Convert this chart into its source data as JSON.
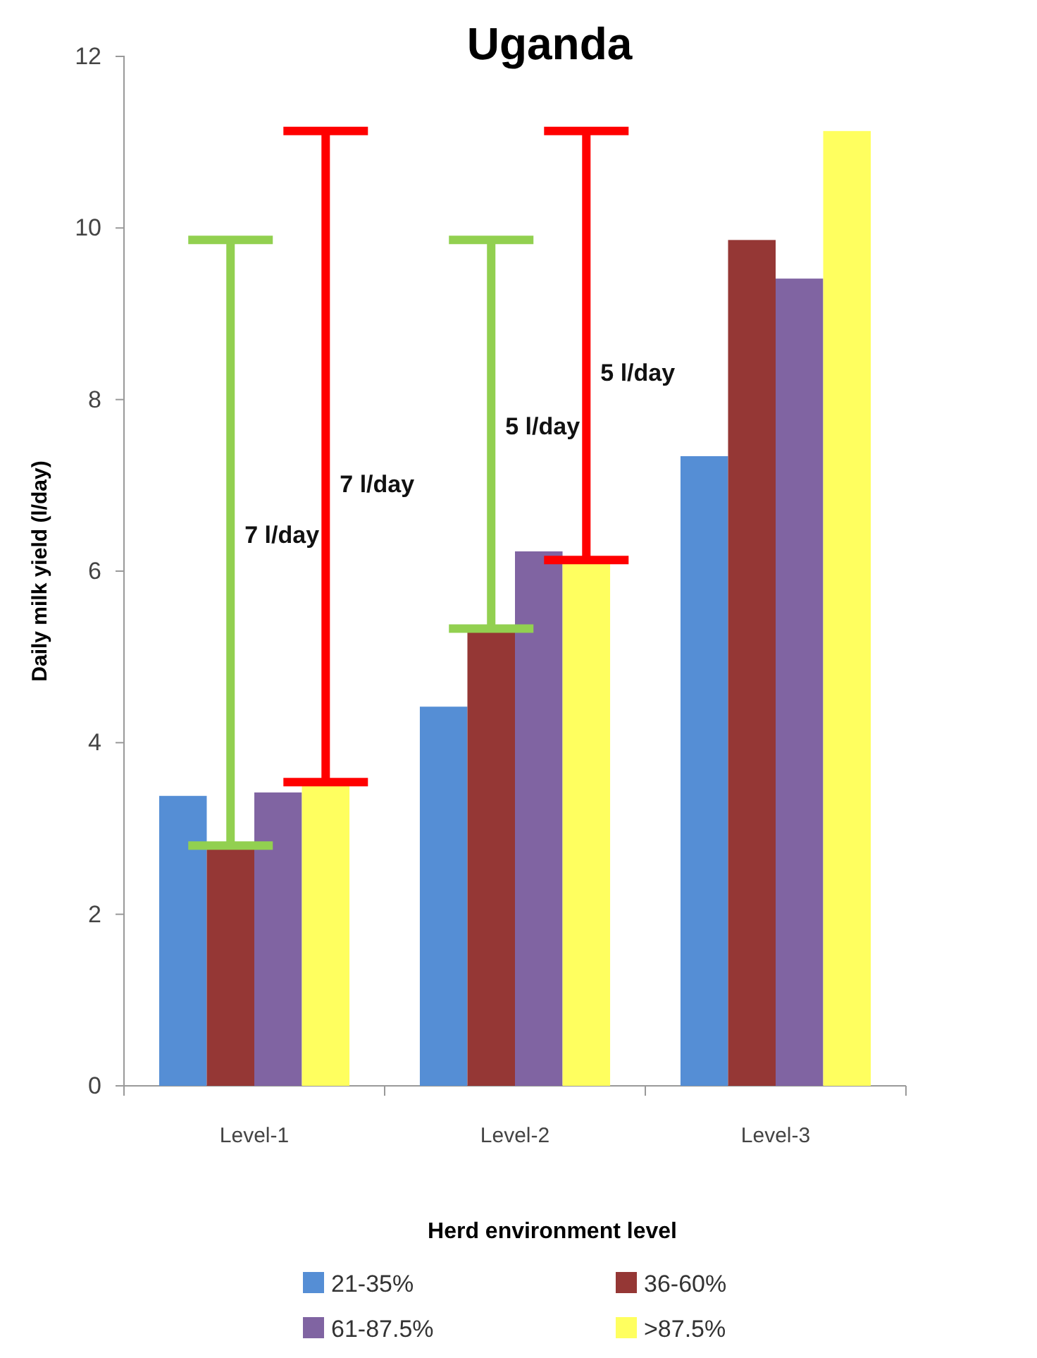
{
  "chart_data": {
    "type": "bar",
    "title": "Uganda",
    "xlabel": "Herd environment level",
    "ylabel": "Daily milk yield (l/day)",
    "categories": [
      "Level-1",
      "Level-2",
      "Level-3"
    ],
    "series": [
      {
        "name": "21-35%",
        "color": "#558ed5",
        "values": [
          3.38,
          4.42,
          7.34
        ]
      },
      {
        "name": "36-60%",
        "color": "#953735",
        "values": [
          2.8,
          5.33,
          9.86
        ]
      },
      {
        "name": "61-87.5%",
        "color": "#8064a2",
        "values": [
          3.42,
          6.23,
          9.41
        ]
      },
      {
        "name": ">87.5%",
        "color": "#ffff5f",
        "values": [
          3.54,
          6.13,
          11.13
        ]
      }
    ],
    "annotations": [
      "7 l/day",
      "7 l/day",
      "5 l/day",
      "5 l/day"
    ],
    "ylim": [
      0,
      12
    ],
    "yticks": [
      0,
      2,
      4,
      6,
      8,
      10,
      12
    ],
    "grid": false,
    "legend": "bottom"
  }
}
